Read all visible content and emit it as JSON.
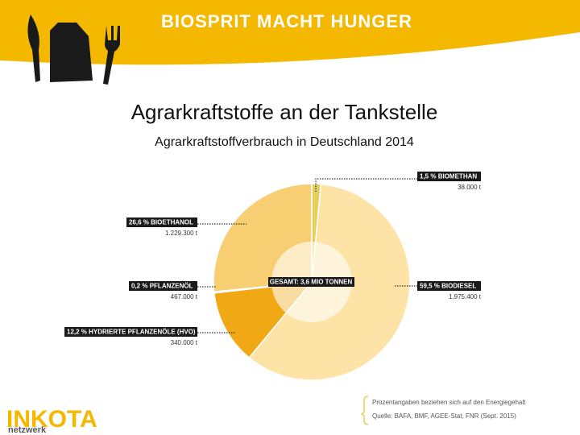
{
  "header": {
    "title": "BIOSPRIT MACHT HUNGER"
  },
  "chart_data": {
    "type": "pie",
    "title": "Agrarkraftstoffe an der Tankstelle",
    "subtitle": "Agrarkraftstoffverbrauch in Deutschland 2014",
    "center_label": "GESAMT: 3,6 MIO TONNEN",
    "categories": [
      "BIOMETHAN",
      "BIODIESEL",
      "HYDRIERTE PFLANZENÖLE (HVO)",
      "PFLANZENÖL",
      "BIOETHANOL"
    ],
    "values": [
      1.5,
      59.5,
      12.2,
      0.2,
      26.6
    ],
    "value_labels": [
      "1,5 %",
      "59,5 %",
      "12,2 %",
      "0,2 %",
      "26,6 %"
    ],
    "amount_labels": [
      "38.000 t",
      "1.975.400 t",
      "340.000 t",
      "467.000 t",
      "1.229.300 t"
    ],
    "colors": [
      "#e3cf5a",
      "#fde3a6",
      "#f0a814",
      "#fff6dc",
      "#f7cf72"
    ]
  },
  "footnote": [
    "Prozentangaben beziehen sich auf den Energiegehalt",
    "Quelle: BAFA, BMF, AGEE-Stat, FNR (Sept. 2015)"
  ],
  "logo": {
    "name": "INKOTA",
    "sub": "netzwerk"
  }
}
